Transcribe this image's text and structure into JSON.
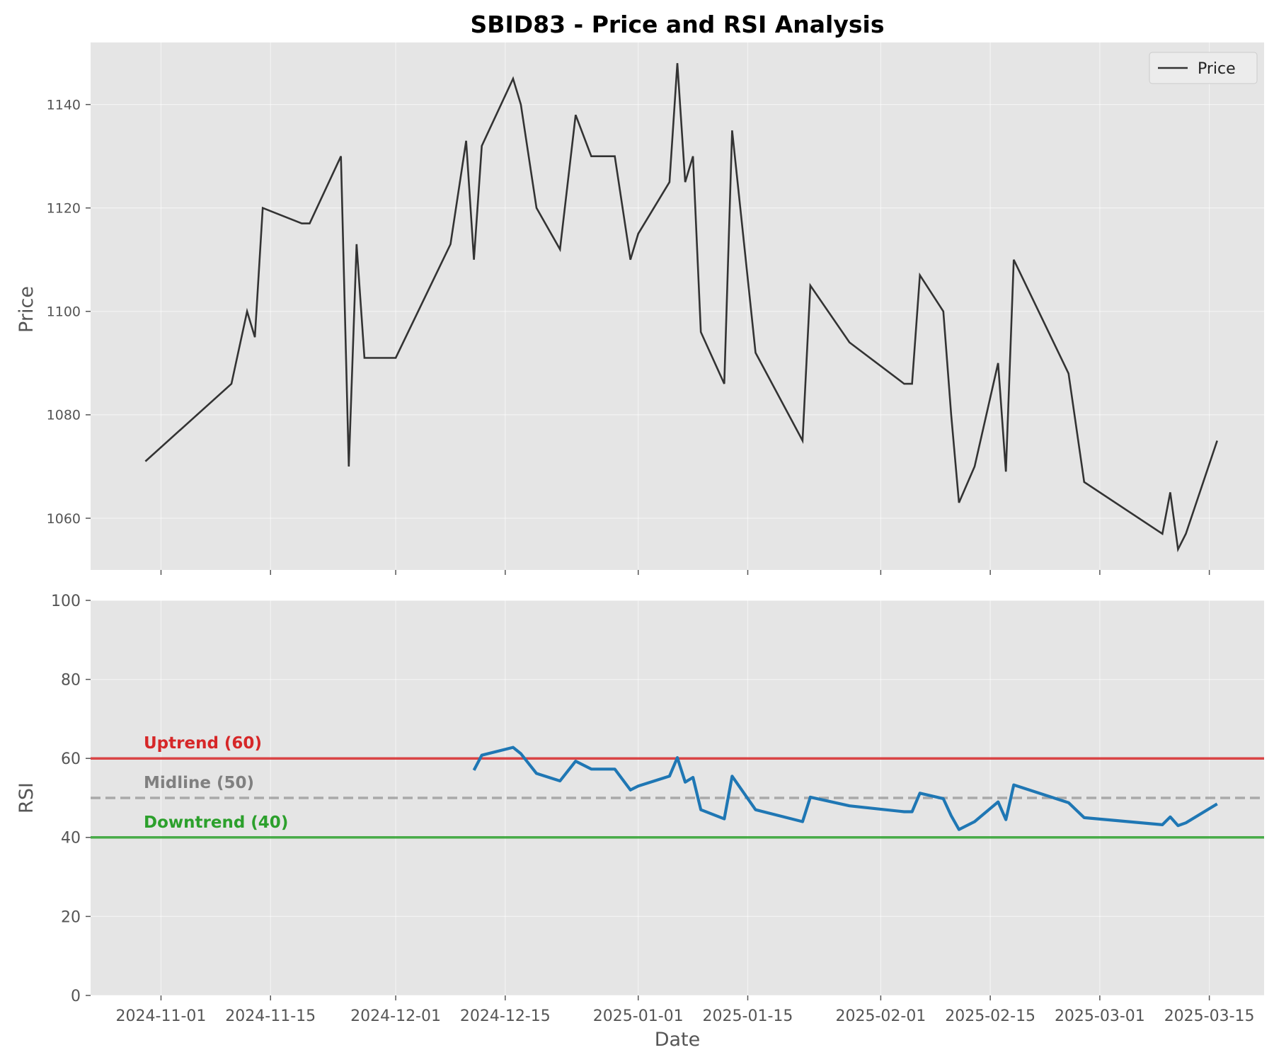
{
  "chart_data": {
    "type": "line",
    "title": "SBID83 - Price and RSI Analysis",
    "xlabel": "Date",
    "x_ticks": [
      "2024-11-01",
      "2024-11-15",
      "2024-12-01",
      "2024-12-15",
      "2025-01-01",
      "2025-01-15",
      "2025-02-01",
      "2025-02-15",
      "2025-03-01",
      "2025-03-15"
    ],
    "xlim": [
      "2024-10-23",
      "2025-03-22"
    ],
    "grid": true,
    "panels": {
      "price": {
        "ylabel": "Price",
        "ylim": [
          1050,
          1152
        ],
        "y_ticks": [
          1060,
          1080,
          1100,
          1120,
          1140
        ],
        "legend": {
          "position": "top-right",
          "entries": [
            "Price"
          ]
        },
        "color": "#333333"
      },
      "rsi": {
        "ylabel": "RSI",
        "ylim": [
          0,
          100
        ],
        "y_ticks": [
          0,
          20,
          40,
          60,
          80,
          100
        ],
        "color": "#1f77b4"
      }
    },
    "series": [
      {
        "name": "Price",
        "points": [
          [
            "2024-10-30",
            1071
          ],
          [
            "2024-11-10",
            1086
          ],
          [
            "2024-11-12",
            1100
          ],
          [
            "2024-11-13",
            1095
          ],
          [
            "2024-11-14",
            1120
          ],
          [
            "2024-11-19",
            1117
          ],
          [
            "2024-11-20",
            1117
          ],
          [
            "2024-11-24",
            1130
          ],
          [
            "2024-11-25",
            1070
          ],
          [
            "2024-11-26",
            1113
          ],
          [
            "2024-11-27",
            1091
          ],
          [
            "2024-12-01",
            1091
          ],
          [
            "2024-12-08",
            1113
          ],
          [
            "2024-12-10",
            1133
          ],
          [
            "2024-12-11",
            1110
          ],
          [
            "2024-12-12",
            1132
          ],
          [
            "2024-12-16",
            1145
          ],
          [
            "2024-12-17",
            1140
          ],
          [
            "2024-12-19",
            1120
          ],
          [
            "2024-12-22",
            1112
          ],
          [
            "2024-12-24",
            1138
          ],
          [
            "2024-12-26",
            1130
          ],
          [
            "2024-12-29",
            1130
          ],
          [
            "2024-12-31",
            1110
          ],
          [
            "2025-01-01",
            1115
          ],
          [
            "2025-01-05",
            1125
          ],
          [
            "2025-01-06",
            1148
          ],
          [
            "2025-01-07",
            1125
          ],
          [
            "2025-01-08",
            1130
          ],
          [
            "2025-01-09",
            1096
          ],
          [
            "2025-01-12",
            1086
          ],
          [
            "2025-01-13",
            1135
          ],
          [
            "2025-01-16",
            1092
          ],
          [
            "2025-01-22",
            1075
          ],
          [
            "2025-01-23",
            1105
          ],
          [
            "2025-01-28",
            1094
          ],
          [
            "2025-02-04",
            1086
          ],
          [
            "2025-02-05",
            1086
          ],
          [
            "2025-02-06",
            1107
          ],
          [
            "2025-02-09",
            1100
          ],
          [
            "2025-02-10",
            1080
          ],
          [
            "2025-02-11",
            1063
          ],
          [
            "2025-02-13",
            1070
          ],
          [
            "2025-02-16",
            1090
          ],
          [
            "2025-02-17",
            1069
          ],
          [
            "2025-02-18",
            1110
          ],
          [
            "2025-02-25",
            1088
          ],
          [
            "2025-02-27",
            1067
          ],
          [
            "2025-03-09",
            1057
          ],
          [
            "2025-03-10",
            1065
          ],
          [
            "2025-03-11",
            1054
          ],
          [
            "2025-03-12",
            1057
          ],
          [
            "2025-03-16",
            1075
          ]
        ]
      },
      {
        "name": "RSI",
        "points": [
          [
            "2024-12-11",
            57
          ],
          [
            "2024-12-12",
            60.8
          ],
          [
            "2024-12-16",
            62.8
          ],
          [
            "2024-12-17",
            61.2
          ],
          [
            "2024-12-19",
            56.2
          ],
          [
            "2024-12-22",
            54.3
          ],
          [
            "2024-12-24",
            59.3
          ],
          [
            "2024-12-26",
            57.3
          ],
          [
            "2024-12-29",
            57.3
          ],
          [
            "2024-12-31",
            52
          ],
          [
            "2025-01-01",
            53
          ],
          [
            "2025-01-05",
            55.5
          ],
          [
            "2025-01-06",
            60.2
          ],
          [
            "2025-01-07",
            54
          ],
          [
            "2025-01-08",
            55.2
          ],
          [
            "2025-01-09",
            47
          ],
          [
            "2025-01-12",
            44.7
          ],
          [
            "2025-01-13",
            55.5
          ],
          [
            "2025-01-16",
            47
          ],
          [
            "2025-01-22",
            44
          ],
          [
            "2025-01-23",
            50.2
          ],
          [
            "2025-01-28",
            48
          ],
          [
            "2025-02-04",
            46.5
          ],
          [
            "2025-02-05",
            46.5
          ],
          [
            "2025-02-06",
            51.2
          ],
          [
            "2025-02-09",
            49.8
          ],
          [
            "2025-02-10",
            45.5
          ],
          [
            "2025-02-11",
            42
          ],
          [
            "2025-02-13",
            44
          ],
          [
            "2025-02-16",
            49
          ],
          [
            "2025-02-17",
            44.5
          ],
          [
            "2025-02-18",
            53.3
          ],
          [
            "2025-02-25",
            48.8
          ],
          [
            "2025-02-27",
            45
          ],
          [
            "2025-03-09",
            43.2
          ],
          [
            "2025-03-10",
            45.2
          ],
          [
            "2025-03-11",
            43
          ],
          [
            "2025-03-12",
            43.7
          ],
          [
            "2025-03-16",
            48.5
          ]
        ]
      }
    ],
    "reference_lines": [
      {
        "label": "Uptrend (60)",
        "value": 60,
        "color": "#d62728",
        "style": "solid"
      },
      {
        "label": "Midline (50)",
        "value": 50,
        "color": "#808080",
        "style": "dashed"
      },
      {
        "label": "Downtrend (40)",
        "value": 40,
        "color": "#2ca02c",
        "style": "solid"
      }
    ]
  }
}
